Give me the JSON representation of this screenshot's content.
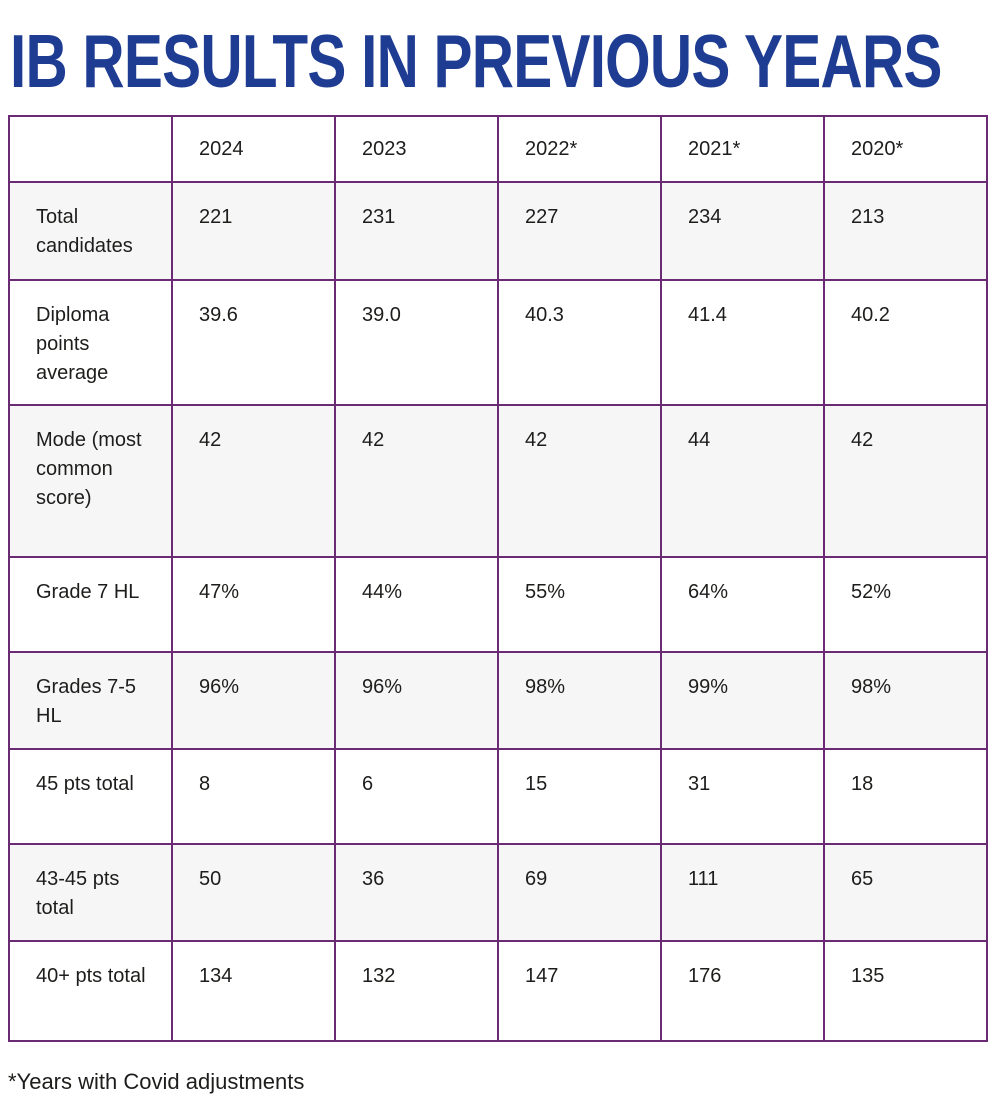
{
  "page": {
    "title": "IB RESULTS IN PREVIOUS YEARS",
    "footnote": "*Years with Covid adjustments"
  },
  "colors": {
    "title_blue": "#1f3c93",
    "table_border_purple": "#6a2a74",
    "shaded_row_background": "#f7f6f7",
    "body_text": "#1d1d1b"
  },
  "table": {
    "columns": [
      "",
      "2024",
      "2023",
      "2022*",
      "2021*",
      "2020*"
    ],
    "rows": [
      {
        "label": "Total candidates",
        "values": [
          "221",
          "231",
          "227",
          "234",
          "213"
        ]
      },
      {
        "label": "Diploma points average",
        "values": [
          "39.6",
          "39.0",
          "40.3",
          "41.4",
          "40.2"
        ]
      },
      {
        "label": "Mode (most common score)",
        "values": [
          "42",
          "42",
          "42",
          "44",
          "42"
        ]
      },
      {
        "label": "Grade 7 HL",
        "values": [
          "47%",
          "44%",
          "55%",
          "64%",
          "52%"
        ]
      },
      {
        "label": "Grades 7-5 HL",
        "values": [
          "96%",
          "96%",
          "98%",
          "99%",
          "98%"
        ]
      },
      {
        "label": "45 pts total",
        "values": [
          "8",
          "6",
          "15",
          "31",
          "18"
        ]
      },
      {
        "label": "43-45 pts total",
        "values": [
          "50",
          "36",
          "69",
          "111",
          "65"
        ]
      },
      {
        "label": "40+ pts total",
        "values": [
          "134",
          "132",
          "147",
          "176",
          "135"
        ]
      }
    ]
  }
}
